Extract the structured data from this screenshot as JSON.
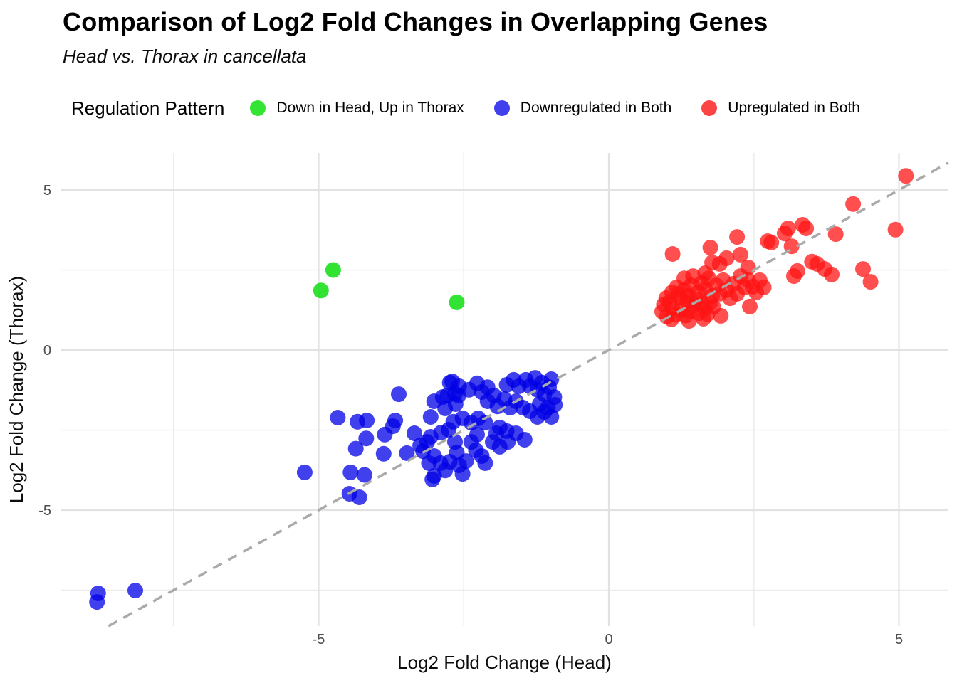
{
  "header": {
    "title": "Comparison of Log2 Fold Changes in Overlapping Genes",
    "subtitle": "Head vs. Thorax in cancellata"
  },
  "legend": {
    "title": "Regulation Pattern",
    "position": "top",
    "items": [
      {
        "label": "Down in Head, Up in Thorax",
        "color": "#33E433",
        "series": "green"
      },
      {
        "label": "Downregulated in Both",
        "color": "#4040ED",
        "series": "blue"
      },
      {
        "label": "Upregulated in Both",
        "color": "#FB4545",
        "series": "red"
      }
    ]
  },
  "chart_data": {
    "type": "scatter",
    "title": "Comparison of Log2 Fold Changes in Overlapping Genes",
    "subtitle": "Head vs. Thorax in cancellata",
    "xlabel": "Log2 Fold Change (Head)",
    "ylabel": "Log2 Fold Change (Thorax)",
    "xlim": [
      -9.45,
      5.85
    ],
    "ylim": [
      -8.6,
      6.15
    ],
    "x_major_ticks": [
      -5,
      0,
      5
    ],
    "x_minor_ticks": [
      -7.5,
      -2.5,
      2.5
    ],
    "y_major_ticks": [
      5,
      0,
      -5
    ],
    "y_minor_ticks": [
      2.5,
      -2.5,
      -7.5
    ],
    "grid": true,
    "grid_major_color": "#E2E2E2",
    "grid_minor_color": "#ECECEC",
    "identity_line": {
      "equation": "y = x",
      "style": "dashed",
      "color": "#AAAAAA",
      "width": 3.5
    },
    "point_radius": 11,
    "series": [
      {
        "name": "Down in Head, Up in Thorax",
        "color": "#00DC00",
        "opacity": 0.8,
        "points": [
          [
            -4.75,
            2.5
          ],
          [
            -4.96,
            1.86
          ],
          [
            -2.62,
            1.49
          ]
        ]
      },
      {
        "name": "Downregulated in Both",
        "color": "#0000E6",
        "opacity": 0.75,
        "points": [
          [
            -8.8,
            -7.6
          ],
          [
            -8.82,
            -7.87
          ],
          [
            -8.16,
            -7.51
          ],
          [
            -5.24,
            -3.82
          ],
          [
            -4.67,
            -2.11
          ],
          [
            -4.47,
            -4.49
          ],
          [
            -4.3,
            -4.6
          ],
          [
            -4.45,
            -3.82
          ],
          [
            -4.33,
            -2.24
          ],
          [
            -4.17,
            -2.2
          ],
          [
            -4.36,
            -3.08
          ],
          [
            -4.18,
            -2.76
          ],
          [
            -4.21,
            -3.9
          ],
          [
            -3.86,
            -2.64
          ],
          [
            -3.88,
            -3.24
          ],
          [
            -3.72,
            -2.38
          ],
          [
            -3.68,
            -2.2
          ],
          [
            -3.62,
            -1.38
          ],
          [
            -3.48,
            -3.22
          ],
          [
            -3.35,
            -2.6
          ],
          [
            -3.25,
            -2.98
          ],
          [
            -3.2,
            -3.16
          ],
          [
            -3.07,
            -2.09
          ],
          [
            -3.01,
            -1.6
          ],
          [
            -3.01,
            -3.93
          ],
          [
            -3.04,
            -4.04
          ],
          [
            -2.86,
            -1.47
          ],
          [
            -2.82,
            -1.82
          ],
          [
            -2.78,
            -1.42
          ],
          [
            -2.7,
            -0.98
          ],
          [
            -2.65,
            -1.36
          ],
          [
            -2.64,
            -1.69
          ],
          [
            -2.59,
            -1.42
          ],
          [
            -3.13,
            -2.87
          ],
          [
            -3.07,
            -2.71
          ],
          [
            -2.89,
            -2.58
          ],
          [
            -2.76,
            -2.49
          ],
          [
            -2.65,
            -2.87
          ],
          [
            -2.62,
            -3.2
          ],
          [
            -3.01,
            -3.31
          ],
          [
            -3.1,
            -3.53
          ],
          [
            -2.9,
            -3.53
          ],
          [
            -2.82,
            -3.76
          ],
          [
            -2.74,
            -3.49
          ],
          [
            -2.58,
            -3.6
          ],
          [
            -2.52,
            -3.87
          ],
          [
            -2.46,
            -3.47
          ],
          [
            -2.37,
            -2.87
          ],
          [
            -2.29,
            -3.13
          ],
          [
            -2.19,
            -3.31
          ],
          [
            -2.13,
            -3.53
          ],
          [
            -2.27,
            -2.64
          ],
          [
            -2.68,
            -2.24
          ],
          [
            -2.52,
            -2.13
          ],
          [
            -2.37,
            -2.27
          ],
          [
            -2.25,
            -2.13
          ],
          [
            -2.13,
            -2.27
          ],
          [
            -2.0,
            -2.87
          ],
          [
            -1.88,
            -3.02
          ],
          [
            -1.74,
            -2.87
          ],
          [
            -1.6,
            -2.6
          ],
          [
            -1.45,
            -2.8
          ],
          [
            -1.94,
            -2.6
          ],
          [
            -1.88,
            -2.42
          ],
          [
            -1.76,
            -2.53
          ],
          [
            -2.74,
            -1.02
          ],
          [
            -2.58,
            -1.13
          ],
          [
            -2.41,
            -1.24
          ],
          [
            -2.27,
            -1.04
          ],
          [
            -2.19,
            -1.31
          ],
          [
            -2.09,
            -1.16
          ],
          [
            -1.98,
            -1.42
          ],
          [
            -2.09,
            -1.6
          ],
          [
            -1.92,
            -1.76
          ],
          [
            -1.8,
            -1.53
          ],
          [
            -1.7,
            -1.8
          ],
          [
            -1.6,
            -1.6
          ],
          [
            -1.48,
            -1.8
          ],
          [
            -1.36,
            -1.91
          ],
          [
            -1.23,
            -2.09
          ],
          [
            -1.11,
            -1.93
          ],
          [
            -0.99,
            -2.09
          ],
          [
            -1.76,
            -1.09
          ],
          [
            -1.64,
            -0.93
          ],
          [
            -1.55,
            -1.13
          ],
          [
            -1.43,
            -0.93
          ],
          [
            -1.36,
            -1.13
          ],
          [
            -1.27,
            -0.87
          ],
          [
            -1.23,
            -1.24
          ],
          [
            -1.15,
            -1.02
          ],
          [
            -1.11,
            -1.38
          ],
          [
            -1.03,
            -1.16
          ],
          [
            -0.99,
            -0.91
          ],
          [
            -0.94,
            -1.47
          ],
          [
            -0.93,
            -1.71
          ],
          [
            -1.05,
            -1.8
          ],
          [
            -1.19,
            -1.69
          ]
        ]
      },
      {
        "name": "Upregulated in Both",
        "color": "#FF1414",
        "opacity": 0.75,
        "points": [
          [
            5.12,
            5.44
          ],
          [
            4.21,
            4.56
          ],
          [
            4.94,
            3.76
          ],
          [
            3.91,
            3.62
          ],
          [
            1.1,
            3.0
          ],
          [
            1.75,
            3.2
          ],
          [
            2.21,
            3.53
          ],
          [
            2.27,
            2.98
          ],
          [
            2.4,
            2.58
          ],
          [
            2.74,
            3.4
          ],
          [
            2.8,
            3.36
          ],
          [
            3.03,
            3.64
          ],
          [
            3.09,
            3.8
          ],
          [
            3.34,
            3.91
          ],
          [
            3.4,
            3.8
          ],
          [
            3.15,
            3.24
          ],
          [
            3.25,
            2.47
          ],
          [
            3.19,
            2.31
          ],
          [
            3.5,
            2.76
          ],
          [
            3.59,
            2.69
          ],
          [
            3.72,
            2.53
          ],
          [
            3.84,
            2.36
          ],
          [
            4.38,
            2.53
          ],
          [
            4.51,
            2.13
          ],
          [
            0.99,
            1.62
          ],
          [
            0.95,
            1.42
          ],
          [
            1.09,
            1.8
          ],
          [
            1.17,
            1.96
          ],
          [
            1.23,
            1.64
          ],
          [
            1.3,
            1.87
          ],
          [
            1.36,
            1.69
          ],
          [
            1.42,
            2.02
          ],
          [
            1.3,
            2.24
          ],
          [
            1.45,
            2.31
          ],
          [
            1.54,
            1.8
          ],
          [
            1.6,
            2.09
          ],
          [
            1.66,
            1.91
          ],
          [
            1.72,
            2.24
          ],
          [
            1.78,
            1.69
          ],
          [
            1.85,
            2.02
          ],
          [
            1.91,
            1.76
          ],
          [
            1.97,
            2.18
          ],
          [
            2.03,
            1.87
          ],
          [
            2.09,
            1.62
          ],
          [
            2.15,
            2.07
          ],
          [
            2.21,
            1.76
          ],
          [
            2.27,
            2.31
          ],
          [
            2.34,
            1.96
          ],
          [
            2.4,
            2.18
          ],
          [
            2.48,
            1.98
          ],
          [
            2.54,
            1.8
          ],
          [
            2.6,
            2.18
          ],
          [
            2.67,
            1.96
          ],
          [
            0.92,
            1.2
          ],
          [
            1.0,
            1.05
          ],
          [
            1.05,
            1.5
          ],
          [
            1.1,
            1.3
          ],
          [
            1.15,
            1.1
          ],
          [
            1.2,
            1.75
          ],
          [
            1.25,
            1.25
          ],
          [
            1.32,
            1.08
          ],
          [
            1.35,
            1.5
          ],
          [
            1.4,
            1.2
          ],
          [
            1.45,
            1.38
          ],
          [
            1.5,
            1.58
          ],
          [
            1.55,
            1.15
          ],
          [
            1.6,
            1.45
          ],
          [
            1.65,
            1.3
          ],
          [
            1.7,
            1.12
          ],
          [
            1.75,
            1.48
          ],
          [
            1.8,
            1.35
          ],
          [
            1.08,
            0.96
          ],
          [
            1.38,
            0.91
          ],
          [
            1.63,
            0.98
          ],
          [
            1.93,
            1.07
          ],
          [
            2.43,
            1.36
          ],
          [
            2.03,
            2.87
          ],
          [
            1.91,
            2.69
          ],
          [
            1.78,
            2.73
          ],
          [
            1.66,
            2.4
          ]
        ]
      }
    ]
  }
}
